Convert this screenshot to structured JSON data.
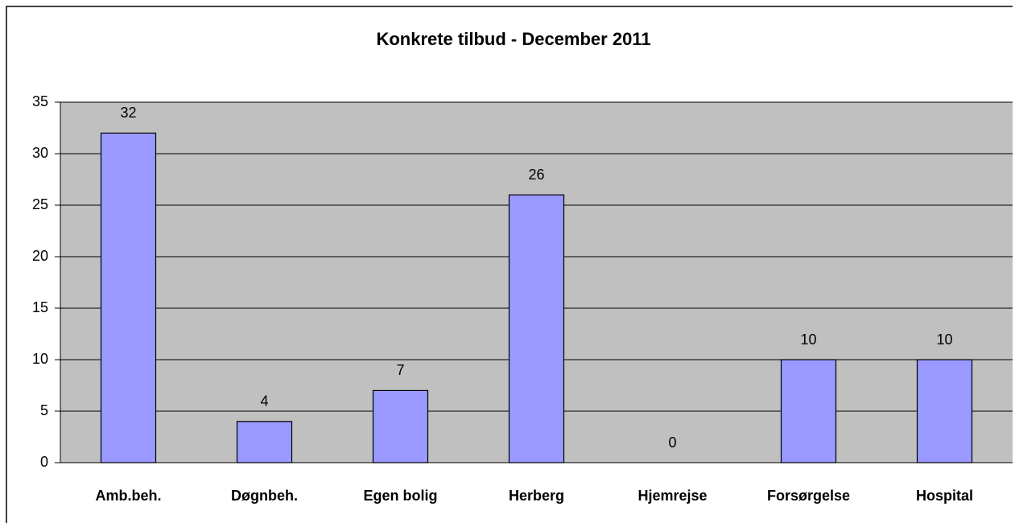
{
  "chart_data": {
    "type": "bar",
    "title": "Konkrete tilbud - December 2011",
    "categories": [
      "Amb.beh.",
      "Døgnbeh.",
      "Egen bolig",
      "Herberg",
      "Hjemrejse",
      "Forsørgelse",
      "Hospital"
    ],
    "values": [
      32,
      4,
      7,
      26,
      0,
      10,
      10
    ],
    "color": "#9999ff",
    "ylim": [
      0,
      35
    ],
    "yticks": [
      0,
      5,
      10,
      15,
      20,
      25,
      30,
      35
    ],
    "grid": true,
    "data_labels": true
  }
}
